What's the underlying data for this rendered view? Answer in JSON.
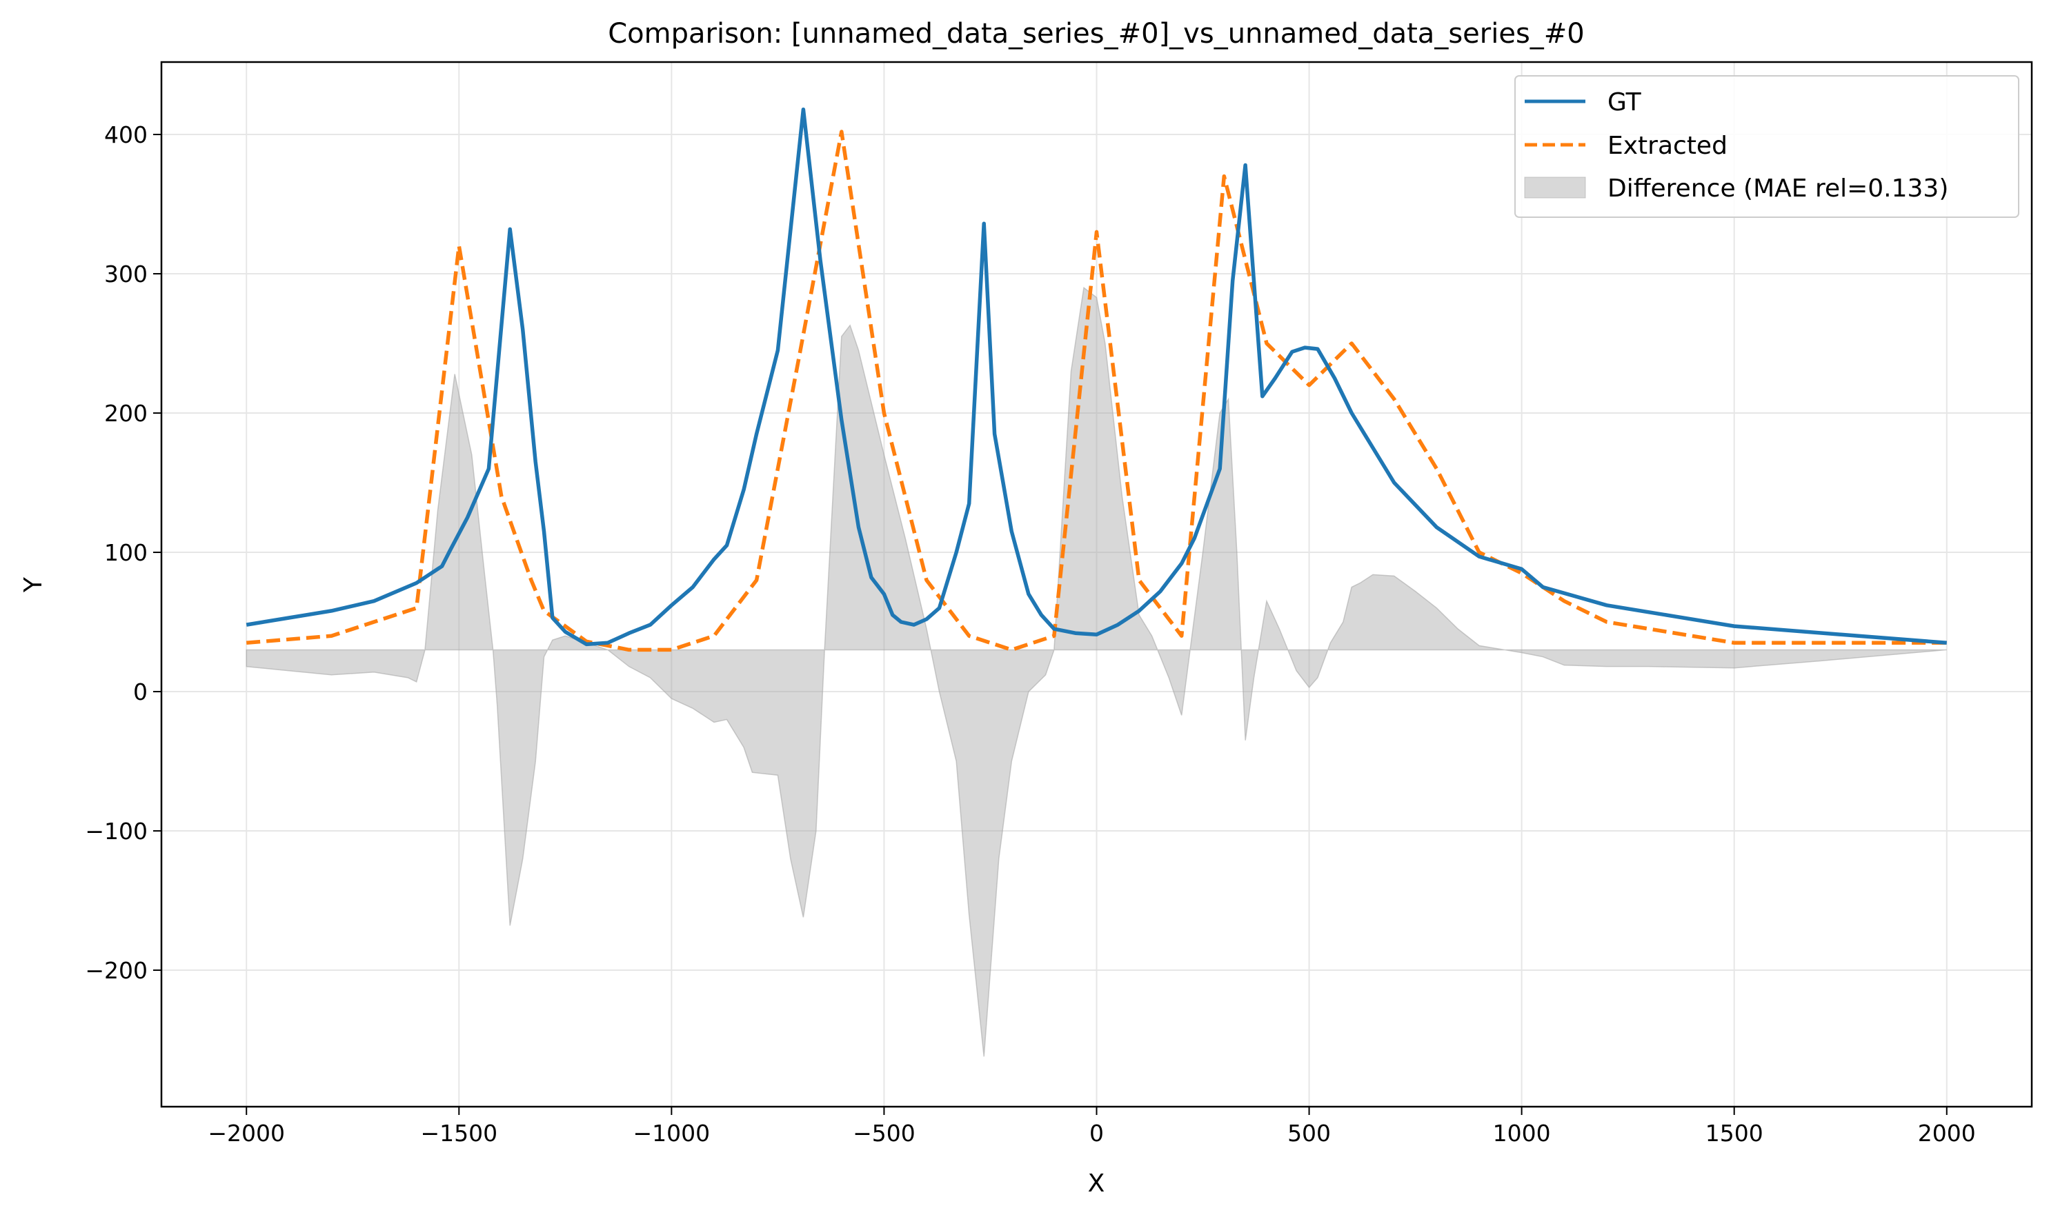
{
  "chart_data": {
    "type": "line",
    "title": "Comparison: [unnamed_data_series_#0]_vs_unnamed_data_series_#0",
    "xlabel": "X",
    "ylabel": "Y",
    "xlim": [
      -2200,
      2200
    ],
    "ylim": [
      -298,
      452
    ],
    "x_ticks": [
      -2000,
      -1500,
      -1000,
      -500,
      0,
      500,
      1000,
      1500,
      2000
    ],
    "y_ticks": [
      -200,
      -100,
      0,
      100,
      200,
      300,
      400
    ],
    "x_tick_labels": [
      "−2000",
      "−1500",
      "−1000",
      "−500",
      "0",
      "500",
      "1000",
      "1500",
      "2000"
    ],
    "y_tick_labels": [
      "−200",
      "−100",
      "0",
      "100",
      "200",
      "300",
      "400"
    ],
    "grid": true,
    "legend_position": "top-right",
    "baseline": 30,
    "series": [
      {
        "name": "GT",
        "color": "#1f77b4",
        "style": "solid",
        "points": [
          [
            -2000,
            48
          ],
          [
            -1900,
            53
          ],
          [
            -1800,
            58
          ],
          [
            -1700,
            65
          ],
          [
            -1600,
            78
          ],
          [
            -1540,
            90
          ],
          [
            -1520,
            102
          ],
          [
            -1480,
            125
          ],
          [
            -1430,
            160
          ],
          [
            -1380,
            332
          ],
          [
            -1350,
            260
          ],
          [
            -1320,
            165
          ],
          [
            -1300,
            115
          ],
          [
            -1280,
            53
          ],
          [
            -1250,
            43
          ],
          [
            -1200,
            34
          ],
          [
            -1150,
            35
          ],
          [
            -1100,
            42
          ],
          [
            -1050,
            48
          ],
          [
            -1000,
            62
          ],
          [
            -950,
            75
          ],
          [
            -900,
            95
          ],
          [
            -870,
            105
          ],
          [
            -830,
            145
          ],
          [
            -800,
            185
          ],
          [
            -750,
            245
          ],
          [
            -690,
            418
          ],
          [
            -650,
            310
          ],
          [
            -600,
            195
          ],
          [
            -560,
            118
          ],
          [
            -530,
            82
          ],
          [
            -500,
            70
          ],
          [
            -480,
            55
          ],
          [
            -460,
            50
          ],
          [
            -430,
            48
          ],
          [
            -400,
            52
          ],
          [
            -370,
            60
          ],
          [
            -330,
            100
          ],
          [
            -300,
            135
          ],
          [
            -265,
            336
          ],
          [
            -240,
            185
          ],
          [
            -220,
            150
          ],
          [
            -200,
            115
          ],
          [
            -160,
            70
          ],
          [
            -130,
            55
          ],
          [
            -100,
            45
          ],
          [
            -50,
            42
          ],
          [
            0,
            41
          ],
          [
            50,
            48
          ],
          [
            100,
            58
          ],
          [
            150,
            72
          ],
          [
            200,
            92
          ],
          [
            230,
            110
          ],
          [
            260,
            135
          ],
          [
            290,
            160
          ],
          [
            320,
            295
          ],
          [
            350,
            378
          ],
          [
            390,
            212
          ],
          [
            420,
            225
          ],
          [
            460,
            244
          ],
          [
            490,
            247
          ],
          [
            520,
            246
          ],
          [
            560,
            225
          ],
          [
            600,
            200
          ],
          [
            650,
            175
          ],
          [
            700,
            150
          ],
          [
            800,
            118
          ],
          [
            900,
            97
          ],
          [
            1000,
            88
          ],
          [
            1050,
            75
          ],
          [
            1200,
            62
          ],
          [
            1500,
            47
          ],
          [
            2000,
            35
          ]
        ]
      },
      {
        "name": "Extracted",
        "color": "#ff7f0e",
        "style": "dashed",
        "points": [
          [
            -2000,
            35
          ],
          [
            -1800,
            40
          ],
          [
            -1600,
            60
          ],
          [
            -1500,
            320
          ],
          [
            -1450,
            230
          ],
          [
            -1400,
            140
          ],
          [
            -1330,
            80
          ],
          [
            -1300,
            58
          ],
          [
            -1200,
            36
          ],
          [
            -1100,
            30
          ],
          [
            -1000,
            30
          ],
          [
            -900,
            40
          ],
          [
            -800,
            80
          ],
          [
            -700,
            240
          ],
          [
            -600,
            402
          ],
          [
            -500,
            200
          ],
          [
            -400,
            80
          ],
          [
            -300,
            40
          ],
          [
            -200,
            30
          ],
          [
            -100,
            40
          ],
          [
            0,
            330
          ],
          [
            100,
            80
          ],
          [
            200,
            40
          ],
          [
            300,
            370
          ],
          [
            400,
            250
          ],
          [
            500,
            220
          ],
          [
            600,
            250
          ],
          [
            700,
            210
          ],
          [
            800,
            160
          ],
          [
            900,
            100
          ],
          [
            1000,
            85
          ],
          [
            1100,
            65
          ],
          [
            1200,
            50
          ],
          [
            1500,
            35
          ],
          [
            2000,
            35
          ]
        ]
      }
    ],
    "difference": {
      "name": "Difference (MAE rel=0.133)",
      "color": "#a9a9a9",
      "points": [
        [
          -2000,
          18
        ],
        [
          -1900,
          15
        ],
        [
          -1800,
          12
        ],
        [
          -1700,
          14
        ],
        [
          -1620,
          10
        ],
        [
          -1600,
          7
        ],
        [
          -1580,
          30
        ],
        [
          -1550,
          130
        ],
        [
          -1510,
          228
        ],
        [
          -1470,
          170
        ],
        [
          -1440,
          85
        ],
        [
          -1420,
          30
        ],
        [
          -1410,
          -10
        ],
        [
          -1380,
          -168
        ],
        [
          -1350,
          -120
        ],
        [
          -1320,
          -50
        ],
        [
          -1300,
          25
        ],
        [
          -1280,
          37
        ],
        [
          -1250,
          40
        ],
        [
          -1200,
          35
        ],
        [
          -1150,
          30
        ],
        [
          -1100,
          18
        ],
        [
          -1050,
          10
        ],
        [
          -1000,
          -5
        ],
        [
          -950,
          -12
        ],
        [
          -900,
          -22
        ],
        [
          -870,
          -20
        ],
        [
          -830,
          -40
        ],
        [
          -810,
          -58
        ],
        [
          -750,
          -60
        ],
        [
          -720,
          -120
        ],
        [
          -690,
          -162
        ],
        [
          -660,
          -100
        ],
        [
          -640,
          30
        ],
        [
          -600,
          255
        ],
        [
          -580,
          263
        ],
        [
          -560,
          245
        ],
        [
          -500,
          170
        ],
        [
          -450,
          110
        ],
        [
          -400,
          45
        ],
        [
          -370,
          0
        ],
        [
          -330,
          -50
        ],
        [
          -300,
          -160
        ],
        [
          -265,
          -262
        ],
        [
          -230,
          -120
        ],
        [
          -200,
          -50
        ],
        [
          -160,
          0
        ],
        [
          -120,
          12
        ],
        [
          -100,
          30
        ],
        [
          -60,
          230
        ],
        [
          -30,
          290
        ],
        [
          0,
          283
        ],
        [
          20,
          250
        ],
        [
          60,
          140
        ],
        [
          100,
          55
        ],
        [
          130,
          40
        ],
        [
          170,
          10
        ],
        [
          200,
          -17
        ],
        [
          220,
          30
        ],
        [
          250,
          100
        ],
        [
          290,
          200
        ],
        [
          310,
          210
        ],
        [
          330,
          100
        ],
        [
          350,
          -35
        ],
        [
          370,
          10
        ],
        [
          400,
          65
        ],
        [
          430,
          45
        ],
        [
          470,
          15
        ],
        [
          500,
          3
        ],
        [
          520,
          10
        ],
        [
          550,
          35
        ],
        [
          580,
          50
        ],
        [
          600,
          75
        ],
        [
          620,
          78
        ],
        [
          650,
          84
        ],
        [
          700,
          83
        ],
        [
          750,
          72
        ],
        [
          800,
          60
        ],
        [
          850,
          45
        ],
        [
          900,
          33
        ],
        [
          1000,
          28
        ],
        [
          1050,
          25
        ],
        [
          1100,
          19
        ],
        [
          1200,
          18
        ],
        [
          1300,
          18
        ],
        [
          1500,
          17
        ],
        [
          1700,
          22
        ],
        [
          2000,
          30
        ]
      ]
    }
  }
}
